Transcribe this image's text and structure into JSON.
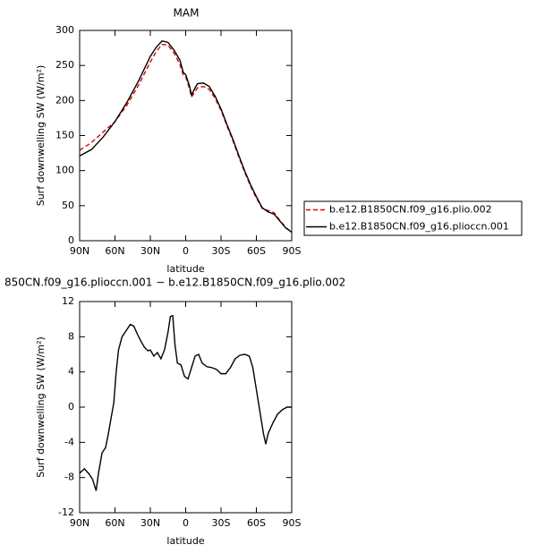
{
  "chart_data": [
    {
      "type": "line",
      "title": "MAM",
      "xlabel": "latitude",
      "ylabel": "Surf downwelling SW (W/m²)",
      "x": [
        90,
        80,
        70,
        60,
        50,
        40,
        30,
        25,
        20,
        15,
        10,
        5,
        2,
        0,
        -3,
        -5,
        -8,
        -10,
        -15,
        -20,
        -25,
        -30,
        -35,
        -40,
        -45,
        -50,
        -55,
        -60,
        -65,
        -70,
        -75,
        -80,
        -85,
        -90
      ],
      "series": [
        {
          "name": "b.e12.B1850CN.f09_g16.plio.002",
          "color": "#e00000",
          "style": "dashed",
          "values": [
            129,
            140,
            155,
            170,
            193,
            222,
            255,
            270,
            280,
            279,
            268,
            252,
            236,
            234,
            218,
            205,
            213,
            218,
            220,
            216,
            203,
            186,
            164,
            143,
            120,
            98,
            78,
            61,
            46,
            43,
            40,
            29,
            19,
            12
          ]
        },
        {
          "name": "b.e12.B1850CN.f09_g16.plioccn.001",
          "color": "#000000",
          "style": "solid",
          "values": [
            121,
            130,
            148,
            170,
            197,
            228,
            263,
            276,
            285,
            283,
            272,
            258,
            240,
            237,
            222,
            208,
            218,
            224,
            225,
            220,
            206,
            188,
            166,
            145,
            122,
            100,
            80,
            63,
            47,
            41,
            38,
            28,
            18,
            12
          ]
        }
      ],
      "xlim": [
        90,
        -90
      ],
      "xticks": [
        {
          "value": 90,
          "label": "90N"
        },
        {
          "value": 60,
          "label": "60N"
        },
        {
          "value": 30,
          "label": "30N"
        },
        0,
        {
          "value": -30,
          "label": "30S"
        },
        {
          "value": -60,
          "label": "60S"
        },
        {
          "value": -90,
          "label": "90S"
        }
      ],
      "ylim": [
        0,
        300
      ],
      "yticks": [
        0,
        50,
        100,
        150,
        200,
        250,
        300
      ],
      "legend": "outside-right"
    },
    {
      "type": "line",
      "title": "850CN.f09_g16.plioccn.001 − b.e12.B1850CN.f09_g16.plio.002",
      "xlabel": "latitude",
      "ylabel": "Surf downwelling SW (W/m²)",
      "x": [
        90,
        86,
        82,
        79,
        76,
        74,
        71,
        68,
        66,
        63,
        61,
        59,
        57,
        54,
        50,
        47,
        44,
        41,
        38,
        35,
        32,
        30,
        27,
        24,
        21,
        18,
        15,
        13,
        11,
        9,
        7,
        4,
        1,
        -2,
        -5,
        -8,
        -11,
        -14,
        -18,
        -22,
        -26,
        -30,
        -34,
        -38,
        -42,
        -46,
        -50,
        -54,
        -57,
        -60,
        -63,
        -66,
        -68,
        -70,
        -74,
        -78,
        -82,
        -86,
        -90
      ],
      "series": [
        {
          "color": "#000000",
          "style": "solid",
          "values": [
            -7.5,
            -7.0,
            -7.6,
            -8.2,
            -9.5,
            -7.5,
            -5.2,
            -4.6,
            -3.3,
            -1,
            0.5,
            4,
            6.5,
            8,
            8.8,
            9.4,
            9.2,
            8.3,
            7.5,
            6.8,
            6.4,
            6.5,
            5.8,
            6.2,
            5.5,
            6.5,
            8.5,
            10.3,
            10.4,
            7,
            5,
            4.8,
            3.5,
            3.2,
            4.5,
            5.8,
            6,
            5,
            4.6,
            4.5,
            4.3,
            3.8,
            3.8,
            4.5,
            5.5,
            5.9,
            6,
            5.8,
            4.5,
            2,
            -0.5,
            -3,
            -4.2,
            -3,
            -1.8,
            -0.8,
            -0.3,
            0,
            0
          ]
        }
      ],
      "xlim": [
        90,
        -90
      ],
      "xticks": [
        {
          "value": 90,
          "label": "90N"
        },
        {
          "value": 60,
          "label": "60N"
        },
        {
          "value": 30,
          "label": "30N"
        },
        0,
        {
          "value": -30,
          "label": "30S"
        },
        {
          "value": -60,
          "label": "60S"
        },
        {
          "value": -90,
          "label": "90S"
        }
      ],
      "ylim": [
        -12,
        12
      ],
      "yticks": [
        -12,
        -8,
        -4,
        0,
        4,
        8,
        12
      ]
    }
  ]
}
